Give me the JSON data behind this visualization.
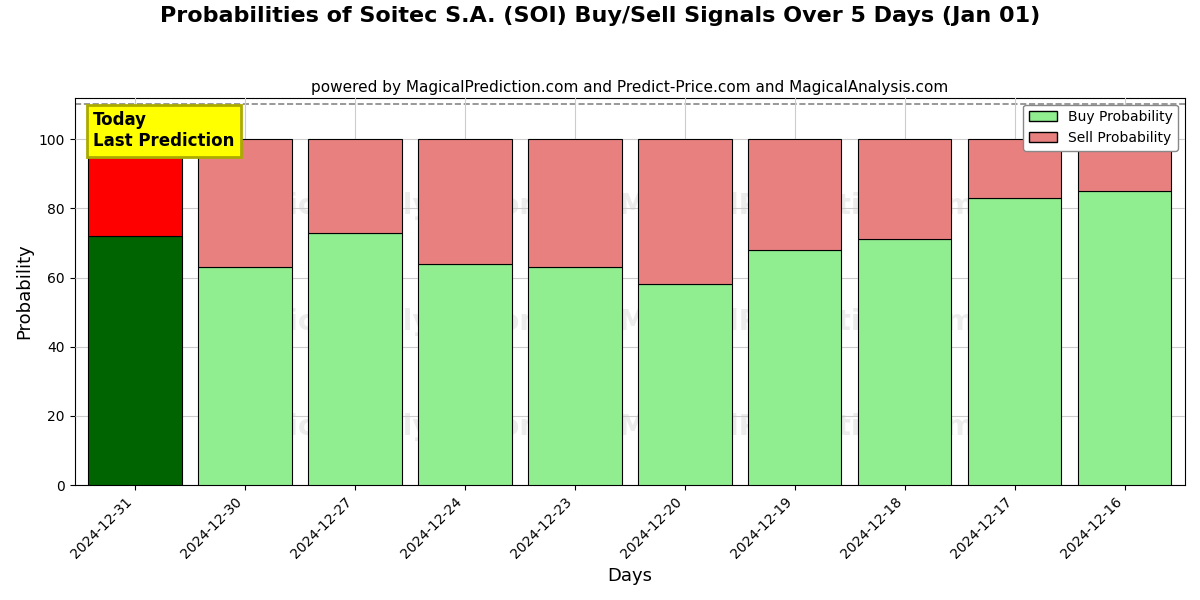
{
  "title": "Probabilities of Soitec S.A. (SOI) Buy/Sell Signals Over 5 Days (Jan 01)",
  "subtitle": "powered by MagicalPrediction.com and Predict-Price.com and MagicalAnalysis.com",
  "xlabel": "Days",
  "ylabel": "Probability",
  "categories": [
    "2024-12-31",
    "2024-12-30",
    "2024-12-27",
    "2024-12-24",
    "2024-12-23",
    "2024-12-20",
    "2024-12-19",
    "2024-12-18",
    "2024-12-17",
    "2024-12-16"
  ],
  "buy_values": [
    72,
    63,
    73,
    64,
    63,
    58,
    68,
    71,
    83,
    85
  ],
  "sell_values": [
    28,
    37,
    27,
    36,
    37,
    42,
    32,
    29,
    17,
    15
  ],
  "today_bar_buy_color": "#006400",
  "today_bar_sell_color": "#FF0000",
  "other_bar_buy_color": "#90EE90",
  "other_bar_sell_color": "#E88080",
  "bar_edge_color": "#000000",
  "ylim": [
    0,
    112
  ],
  "yticks": [
    0,
    20,
    40,
    60,
    80,
    100
  ],
  "dashed_line_y": 110,
  "dashed_line_color": "#888888",
  "legend_buy_label": "Buy Probability",
  "legend_sell_label": "Sell Probability",
  "annotation_text": "Today\nLast Prediction",
  "annotation_bg_color": "#FFFF00",
  "annotation_border_color": "#AAAA00",
  "background_color": "#FFFFFF",
  "grid_color": "#CCCCCC",
  "title_fontsize": 16,
  "subtitle_fontsize": 11,
  "axis_label_fontsize": 13,
  "tick_fontsize": 10,
  "annotation_fontsize": 12,
  "bar_width": 0.85
}
